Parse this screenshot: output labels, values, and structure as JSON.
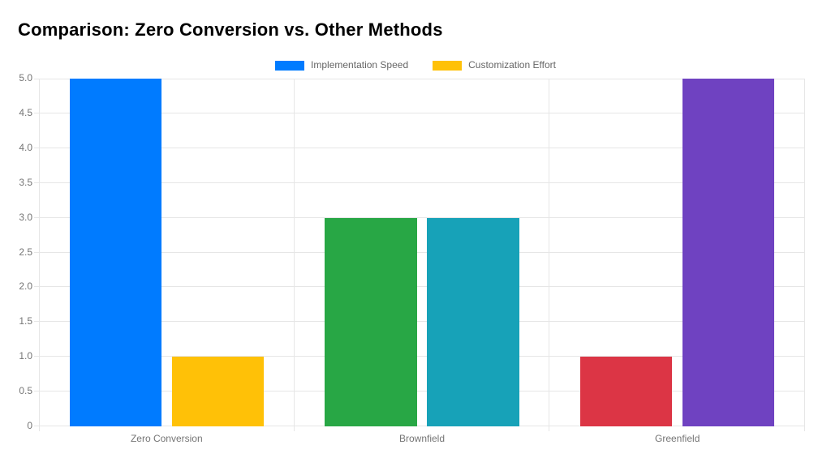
{
  "title": {
    "text": "Comparison: Zero Conversion vs. Other Methods"
  },
  "chart_data": {
    "type": "bar",
    "title": "Comparison: Zero Conversion vs. Other Methods",
    "categories": [
      "Zero Conversion",
      "Brownfield",
      "Greenfield"
    ],
    "series": [
      {
        "name": "Implementation Speed",
        "values": [
          5,
          3,
          1
        ],
        "bar_colors": [
          "#007bff",
          "#28a745",
          "#dc3545"
        ],
        "legend_color": "#007bff"
      },
      {
        "name": "Customization Effort",
        "values": [
          1,
          3,
          5
        ],
        "bar_colors": [
          "#ffc107",
          "#17a2b8",
          "#6f42c1"
        ],
        "legend_color": "#ffc107"
      }
    ],
    "xlabel": "",
    "ylabel": "",
    "ylim": [
      0,
      5
    ],
    "yticks": [
      {
        "value": 0,
        "label": "0"
      },
      {
        "value": 0.5,
        "label": "0.5"
      },
      {
        "value": 1,
        "label": "1.0"
      },
      {
        "value": 1.5,
        "label": "1.5"
      },
      {
        "value": 2,
        "label": "2.0"
      },
      {
        "value": 2.5,
        "label": "2.5"
      },
      {
        "value": 3,
        "label": "3.0"
      },
      {
        "value": 3.5,
        "label": "3.5"
      },
      {
        "value": 4,
        "label": "4.0"
      },
      {
        "value": 4.5,
        "label": "4.5"
      },
      {
        "value": 5,
        "label": "5.0"
      }
    ],
    "grid": true,
    "legend_position": "top",
    "styles": {
      "background": "#ffffff",
      "grid_color": "#e6e6e6",
      "tick_text_color": "#757575",
      "legend_text_color": "#666666",
      "title_color": "#000000"
    }
  }
}
